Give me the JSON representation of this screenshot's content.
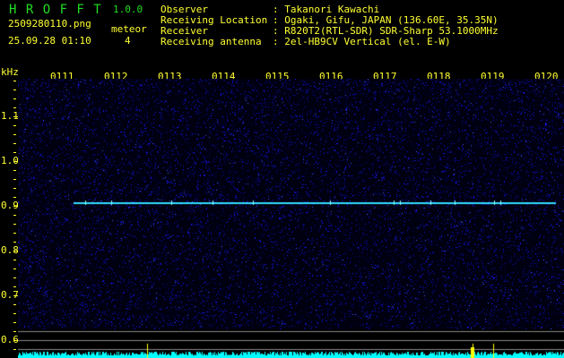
{
  "header": {
    "app_title": "H R O F F T",
    "version": "1.0.0",
    "filename": "2509280110.png",
    "datetime": "25.09.28 01:10",
    "meteor_label": "meteor",
    "meteor_count": "4",
    "info": [
      {
        "label": "Observer",
        "value": ": Takanori Kawachi"
      },
      {
        "label": "Receiving Location",
        "value": ": Ogaki, Gifu, JAPAN (136.60E, 35.35N)"
      },
      {
        "label": "Receiver",
        "value": ": R820T2(RTL-SDR) SDR-Sharp 53.1000MHz"
      },
      {
        "label": "Receiving antenna",
        "value": ": 2el-HB9CV Vertical (el. E-W)"
      }
    ]
  },
  "spectrogram": {
    "y_unit": "kHz",
    "y_ticks": [
      "1.1",
      "1.0",
      "0.9",
      "0.8",
      "0.7",
      "0.6"
    ],
    "time_ticks": [
      "0111",
      "0112",
      "0113",
      "0114",
      "0115",
      "0116",
      "0117",
      "0118",
      "0119",
      "0120"
    ],
    "signal_color": "#33ddff",
    "noise_color": "#1a1aff",
    "detection_color": "#ffff00",
    "histogram_color": "#00ffff"
  }
}
